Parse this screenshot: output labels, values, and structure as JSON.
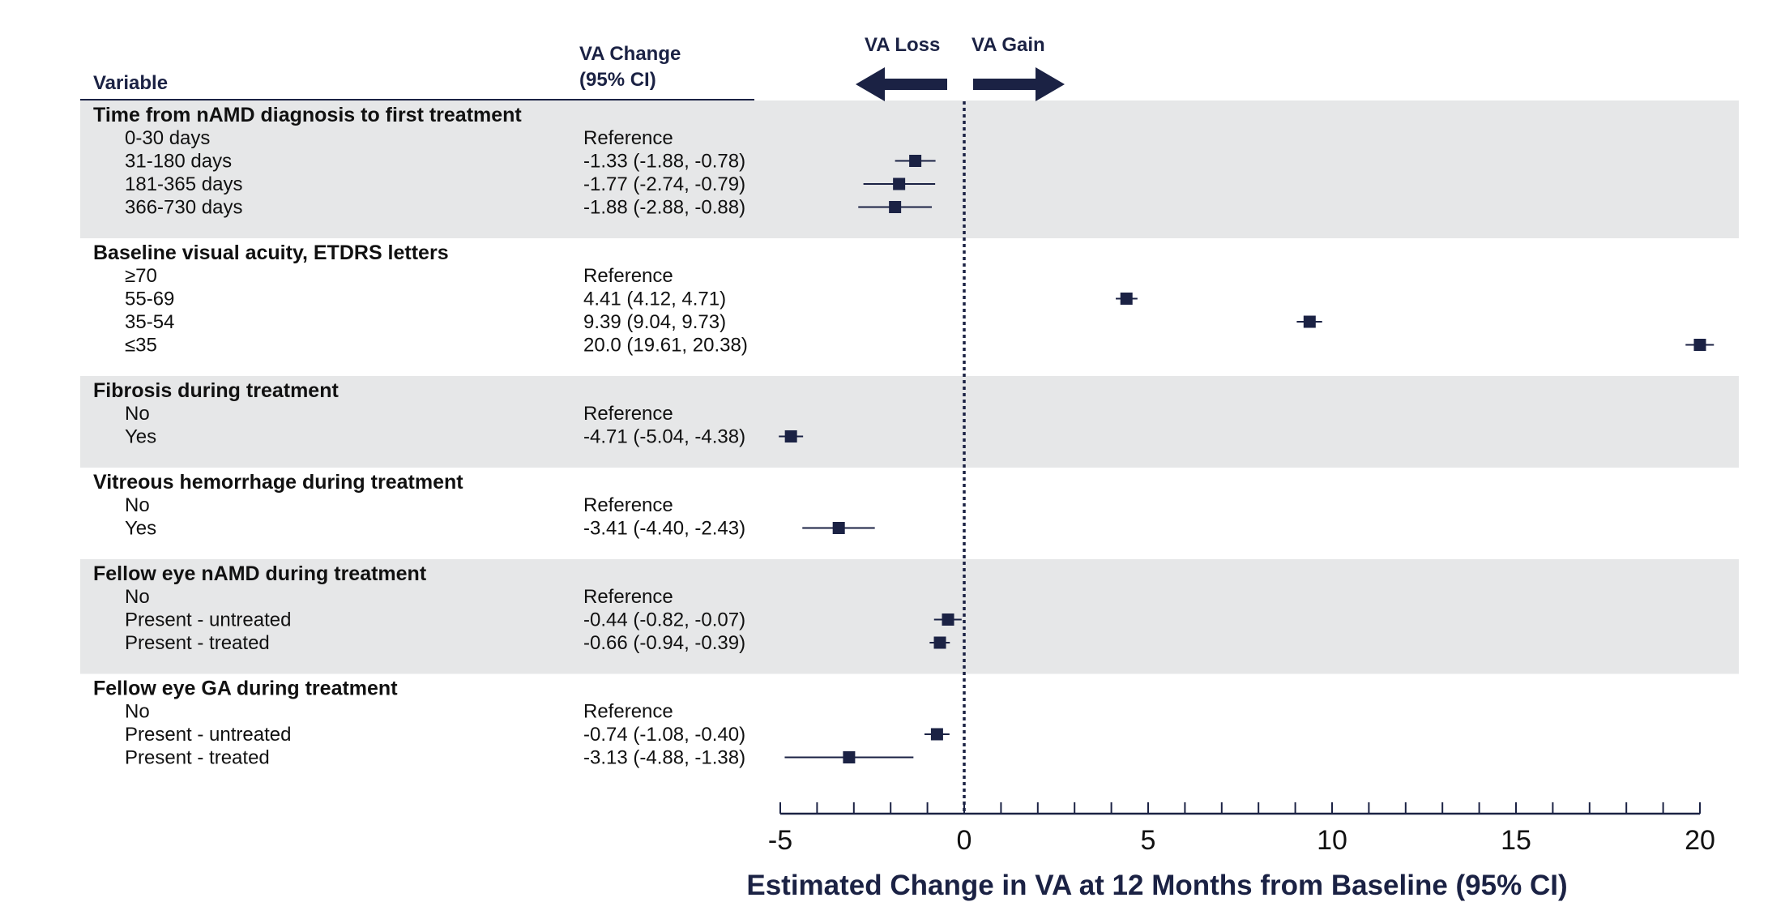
{
  "chart_data": {
    "type": "forest",
    "headers": {
      "variable": "Variable",
      "va_change_line1": "VA Change",
      "va_change_line2": "(95% CI)",
      "loss": "VA Loss",
      "gain": "VA Gain"
    },
    "xlabel": "Estimated Change in VA at 12 Months from Baseline (95% CI)",
    "xlim": [
      -5,
      20
    ],
    "xticks": [
      "-5",
      "0",
      "5",
      "10",
      "15",
      "20"
    ],
    "reference_line": 0,
    "groups": [
      {
        "title": "Time from nAMD diagnosis to first treatment",
        "shaded": true,
        "rows": [
          {
            "label": "0-30 days",
            "text": "Reference",
            "est": null,
            "lo": null,
            "hi": null
          },
          {
            "label": "31-180 days",
            "text": "-1.33 (-1.88, -0.78)",
            "est": -1.33,
            "lo": -1.88,
            "hi": -0.78
          },
          {
            "label": "181-365 days",
            "text": "-1.77 (-2.74, -0.79)",
            "est": -1.77,
            "lo": -2.74,
            "hi": -0.79
          },
          {
            "label": "366-730 days",
            "text": "-1.88 (-2.88, -0.88)",
            "est": -1.88,
            "lo": -2.88,
            "hi": -0.88
          }
        ]
      },
      {
        "title": "Baseline visual acuity, ETDRS letters",
        "shaded": false,
        "rows": [
          {
            "label": "≥70",
            "text": "Reference",
            "est": null,
            "lo": null,
            "hi": null
          },
          {
            "label": "55-69",
            "text": "4.41 (4.12, 4.71)",
            "est": 4.41,
            "lo": 4.12,
            "hi": 4.71
          },
          {
            "label": "35-54",
            "text": "9.39 (9.04, 9.73)",
            "est": 9.39,
            "lo": 9.04,
            "hi": 9.73
          },
          {
            "label": "≤35",
            "text": "20.0 (19.61, 20.38)",
            "est": 20.0,
            "lo": 19.61,
            "hi": 20.38
          }
        ]
      },
      {
        "title": "Fibrosis during treatment",
        "shaded": true,
        "rows": [
          {
            "label": "No",
            "text": "Reference",
            "est": null,
            "lo": null,
            "hi": null
          },
          {
            "label": "Yes",
            "text": "-4.71 (-5.04, -4.38)",
            "est": -4.71,
            "lo": -5.04,
            "hi": -4.38
          }
        ]
      },
      {
        "title": "Vitreous hemorrhage during treatment",
        "shaded": false,
        "rows": [
          {
            "label": "No",
            "text": "Reference",
            "est": null,
            "lo": null,
            "hi": null
          },
          {
            "label": "Yes",
            "text": "-3.41 (-4.40, -2.43)",
            "est": -3.41,
            "lo": -4.4,
            "hi": -2.43
          }
        ]
      },
      {
        "title": "Fellow eye nAMD during treatment",
        "shaded": true,
        "rows": [
          {
            "label": "No",
            "text": "Reference",
            "est": null,
            "lo": null,
            "hi": null
          },
          {
            "label": "Present - untreated",
            "text": "-0.44 (-0.82, -0.07)",
            "est": -0.44,
            "lo": -0.82,
            "hi": -0.07
          },
          {
            "label": "Present - treated",
            "text": "-0.66 (-0.94, -0.39)",
            "est": -0.66,
            "lo": -0.94,
            "hi": -0.39
          }
        ]
      },
      {
        "title": "Fellow eye GA during treatment",
        "shaded": false,
        "rows": [
          {
            "label": "No",
            "text": "Reference",
            "est": null,
            "lo": null,
            "hi": null
          },
          {
            "label": "Present - untreated",
            "text": "-0.74 (-1.08, -0.40)",
            "est": -0.74,
            "lo": -1.08,
            "hi": -0.4
          },
          {
            "label": "Present - treated",
            "text": "-3.13 (-4.88, -1.38)",
            "est": -3.13,
            "lo": -4.88,
            "hi": -1.38
          }
        ]
      }
    ],
    "colors": {
      "marker": "#1b2244",
      "shade": "#e6e7e8",
      "axis": "#1b2244",
      "header": "#1b2244"
    }
  }
}
